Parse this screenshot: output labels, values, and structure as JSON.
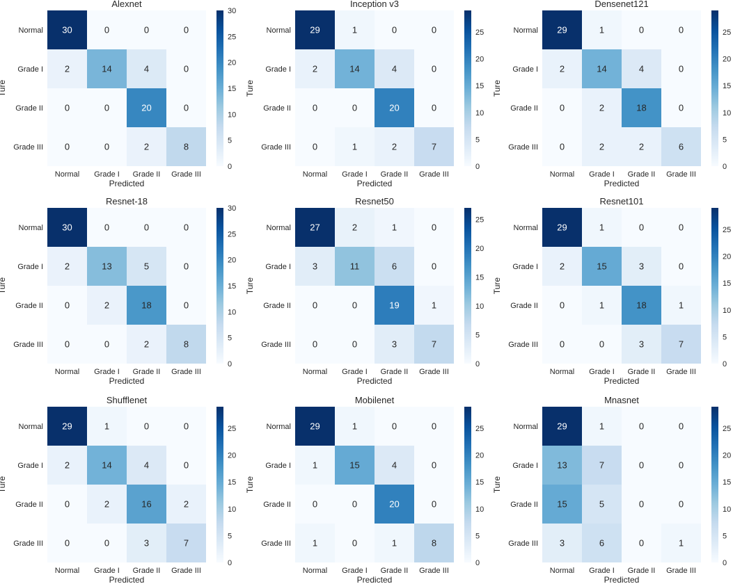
{
  "chart_data": [
    {
      "type": "heatmap",
      "title": "Alexnet",
      "xlabel": "Predicted",
      "ylabel": "Ture",
      "x_categories": [
        "Normal",
        "Grade I",
        "Grade II",
        "Grade III"
      ],
      "y_categories": [
        "Normal",
        "Grade I",
        "Grade II",
        "Grade III"
      ],
      "values": [
        [
          30,
          0,
          0,
          0
        ],
        [
          2,
          14,
          4,
          0
        ],
        [
          0,
          0,
          20,
          0
        ],
        [
          0,
          0,
          2,
          8
        ]
      ],
      "vmin": 0,
      "vmax": 30,
      "colorbar_ticks": [
        "0",
        "5",
        "10",
        "15",
        "20",
        "25",
        "30"
      ],
      "colormap": [
        "#f7fbff",
        "#deebf7",
        "#c6dbef",
        "#9ecae1",
        "#6baed6",
        "#4292c6",
        "#2171b5",
        "#08519c",
        "#08306b"
      ]
    },
    {
      "type": "heatmap",
      "title": "Inception v3",
      "xlabel": "Predicted",
      "ylabel": "Ture",
      "x_categories": [
        "Normal",
        "Grade I",
        "Grade II",
        "Grade III"
      ],
      "y_categories": [
        "Normal",
        "Grade I",
        "Grade II",
        "Grade III"
      ],
      "values": [
        [
          29,
          1,
          0,
          0
        ],
        [
          2,
          14,
          4,
          0
        ],
        [
          0,
          0,
          20,
          0
        ],
        [
          0,
          1,
          2,
          7
        ]
      ],
      "vmin": 0,
      "vmax": 29,
      "colorbar_ticks": [
        "0",
        "5",
        "10",
        "15",
        "20",
        "25"
      ],
      "colormap": [
        "#f7fbff",
        "#deebf7",
        "#c6dbef",
        "#9ecae1",
        "#6baed6",
        "#4292c6",
        "#2171b5",
        "#08519c",
        "#08306b"
      ]
    },
    {
      "type": "heatmap",
      "title": "Densenet121",
      "xlabel": "Predicted",
      "ylabel": "Ture",
      "x_categories": [
        "Normal",
        "Grade I",
        "Grade II",
        "Grade III"
      ],
      "y_categories": [
        "Normal",
        "Grade I",
        "Grade II",
        "Grade III"
      ],
      "values": [
        [
          29,
          1,
          0,
          0
        ],
        [
          2,
          14,
          4,
          0
        ],
        [
          0,
          2,
          18,
          0
        ],
        [
          0,
          2,
          2,
          6
        ]
      ],
      "vmin": 0,
      "vmax": 29,
      "colorbar_ticks": [
        "0",
        "5",
        "10",
        "15",
        "20",
        "25"
      ],
      "colormap": [
        "#f7fbff",
        "#deebf7",
        "#c6dbef",
        "#9ecae1",
        "#6baed6",
        "#4292c6",
        "#2171b5",
        "#08519c",
        "#08306b"
      ]
    },
    {
      "type": "heatmap",
      "title": "Resnet-18",
      "xlabel": "Predicted",
      "ylabel": "Ture",
      "x_categories": [
        "Normal",
        "Grade I",
        "Grade II",
        "Grade III"
      ],
      "y_categories": [
        "Normal",
        "Grade I",
        "Grade II",
        "Grade III"
      ],
      "values": [
        [
          30,
          0,
          0,
          0
        ],
        [
          2,
          13,
          5,
          0
        ],
        [
          0,
          2,
          18,
          0
        ],
        [
          0,
          0,
          2,
          8
        ]
      ],
      "vmin": 0,
      "vmax": 30,
      "colorbar_ticks": [
        "0",
        "5",
        "10",
        "15",
        "20",
        "25",
        "30"
      ],
      "colormap": [
        "#f7fbff",
        "#deebf7",
        "#c6dbef",
        "#9ecae1",
        "#6baed6",
        "#4292c6",
        "#2171b5",
        "#08519c",
        "#08306b"
      ]
    },
    {
      "type": "heatmap",
      "title": "Resnet50",
      "xlabel": "Predicted",
      "ylabel": "Ture",
      "x_categories": [
        "Normal",
        "Grade I",
        "Grade II",
        "Grade III"
      ],
      "y_categories": [
        "Normal",
        "Grade I",
        "Grade II",
        "Grade III"
      ],
      "values": [
        [
          27,
          2,
          1,
          0
        ],
        [
          3,
          11,
          6,
          0
        ],
        [
          0,
          0,
          19,
          1
        ],
        [
          0,
          0,
          3,
          7
        ]
      ],
      "vmin": 0,
      "vmax": 27,
      "colorbar_ticks": [
        "0",
        "5",
        "10",
        "15",
        "20",
        "25"
      ],
      "colormap": [
        "#f7fbff",
        "#deebf7",
        "#c6dbef",
        "#9ecae1",
        "#6baed6",
        "#4292c6",
        "#2171b5",
        "#08519c",
        "#08306b"
      ]
    },
    {
      "type": "heatmap",
      "title": "Resnet101",
      "xlabel": "Predicted",
      "ylabel": "Ture",
      "x_categories": [
        "Normal",
        "Grade I",
        "Grade II",
        "Grade III"
      ],
      "y_categories": [
        "Normal",
        "Grade I",
        "Grade II",
        "Grade III"
      ],
      "values": [
        [
          29,
          1,
          0,
          0
        ],
        [
          2,
          15,
          3,
          0
        ],
        [
          0,
          1,
          18,
          1
        ],
        [
          0,
          0,
          3,
          7
        ]
      ],
      "vmin": 0,
      "vmax": 29,
      "colorbar_ticks": [
        "0",
        "5",
        "10",
        "15",
        "20",
        "25"
      ],
      "colormap": [
        "#f7fbff",
        "#deebf7",
        "#c6dbef",
        "#9ecae1",
        "#6baed6",
        "#4292c6",
        "#2171b5",
        "#08519c",
        "#08306b"
      ]
    },
    {
      "type": "heatmap",
      "title": "Shufflenet",
      "xlabel": "Predicted",
      "ylabel": "Ture",
      "x_categories": [
        "Normal",
        "Grade I",
        "Grade II",
        "Grade III"
      ],
      "y_categories": [
        "Normal",
        "Grade I",
        "Grade II",
        "Grade III"
      ],
      "values": [
        [
          29,
          1,
          0,
          0
        ],
        [
          2,
          14,
          4,
          0
        ],
        [
          0,
          2,
          16,
          2
        ],
        [
          0,
          0,
          3,
          7
        ]
      ],
      "vmin": 0,
      "vmax": 29,
      "colorbar_ticks": [
        "0",
        "5",
        "10",
        "15",
        "20",
        "25"
      ],
      "colormap": [
        "#f7fbff",
        "#deebf7",
        "#c6dbef",
        "#9ecae1",
        "#6baed6",
        "#4292c6",
        "#2171b5",
        "#08519c",
        "#08306b"
      ]
    },
    {
      "type": "heatmap",
      "title": "Mobilenet",
      "xlabel": "Predicted",
      "ylabel": "Ture",
      "x_categories": [
        "Normal",
        "Grade I",
        "Grade II",
        "Grade III"
      ],
      "y_categories": [
        "Normal",
        "Grade I",
        "Grade II",
        "Grade III"
      ],
      "values": [
        [
          29,
          1,
          0,
          0
        ],
        [
          1,
          15,
          4,
          0
        ],
        [
          0,
          0,
          20,
          0
        ],
        [
          1,
          0,
          1,
          8
        ]
      ],
      "vmin": 0,
      "vmax": 29,
      "colorbar_ticks": [
        "0",
        "5",
        "10",
        "15",
        "20",
        "25"
      ],
      "colormap": [
        "#f7fbff",
        "#deebf7",
        "#c6dbef",
        "#9ecae1",
        "#6baed6",
        "#4292c6",
        "#2171b5",
        "#08519c",
        "#08306b"
      ]
    },
    {
      "type": "heatmap",
      "title": "Mnasnet",
      "xlabel": "Predicted",
      "ylabel": "Ture",
      "x_categories": [
        "Normal",
        "Grade I",
        "Grade II",
        "Grade III"
      ],
      "y_categories": [
        "Normal",
        "Grade I",
        "Grade II",
        "Grade III"
      ],
      "values": [
        [
          29,
          1,
          0,
          0
        ],
        [
          13,
          7,
          0,
          0
        ],
        [
          15,
          5,
          0,
          0
        ],
        [
          3,
          6,
          0,
          1
        ]
      ],
      "vmin": 0,
      "vmax": 29,
      "colorbar_ticks": [
        "0",
        "5",
        "10",
        "15",
        "20",
        "25"
      ],
      "colormap": [
        "#f7fbff",
        "#deebf7",
        "#c6dbef",
        "#9ecae1",
        "#6baed6",
        "#4292c6",
        "#2171b5",
        "#08519c",
        "#08306b"
      ]
    }
  ]
}
